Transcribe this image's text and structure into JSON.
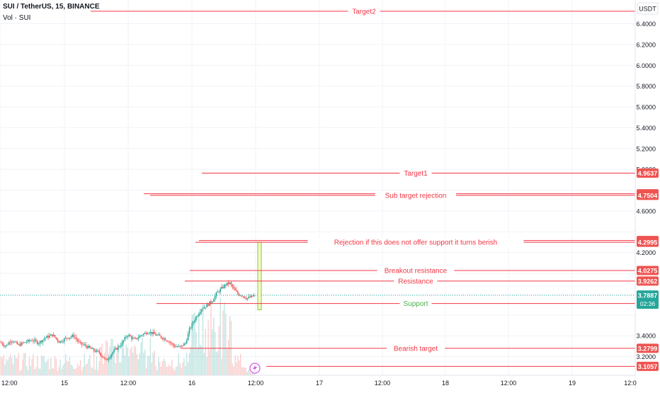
{
  "header": {
    "symbol_line": "SUI / TetherUS, 15, BINANCE",
    "volume_line": "Vol · SUI"
  },
  "price_scale": {
    "currency": "USDT",
    "ticks": [
      "6.4000",
      "6.2000",
      "6.0000",
      "5.8000",
      "5.6000",
      "5.4000",
      "5.2000",
      "5.0000",
      "4.6000",
      "4.2000",
      "3.4000",
      "3.2000"
    ]
  },
  "time_axis": {
    "labels": [
      "12:00",
      "15",
      "12:00",
      "16",
      "12:00",
      "17",
      "12:00",
      "18",
      "12:00",
      "19",
      "12:0"
    ]
  },
  "colors": {
    "up": "#26a69a",
    "down": "#ef5350",
    "line": "#f23645",
    "support_text": "#4caf50",
    "current_price": "#26a69a",
    "box_fill": "#f4fcc2",
    "box_stroke": "#8bc34a"
  },
  "chart_data": {
    "type": "candlestick",
    "symbol": "SUI / TetherUS",
    "interval": "15",
    "exchange": "BINANCE",
    "ylim": [
      3.05,
      6.58
    ],
    "current_price": {
      "value": "3.7887",
      "countdown": "02:36"
    },
    "levels": [
      {
        "label": "Target2",
        "price": 6.52,
        "price_label": "",
        "text_color": "#f23645",
        "start_x": 128
      },
      {
        "label": "Target1",
        "price": 4.9637,
        "price_label": "4.9637",
        "text_color": "#f23645",
        "start_x": 285
      },
      {
        "label": "",
        "price": 4.7657,
        "price_label": "4.7657",
        "text_color": "#f23645",
        "start_x": 203
      },
      {
        "label": "Sub target rejection",
        "price": 4.7504,
        "price_label": "4.7504",
        "text_color": "#f23645",
        "start_x": 212
      },
      {
        "label": "",
        "price": 4.3159,
        "price_label": "4.3159",
        "text_color": "#f23645",
        "start_x": 281
      },
      {
        "label": "Rejection if this does not offer support it turns berish",
        "price": 4.2995,
        "price_label": "4.2995",
        "text_color": "#f23645",
        "start_x": 276
      },
      {
        "label": "Breakout resistance",
        "price": 4.0275,
        "price_label": "4.0275",
        "text_color": "#f23645",
        "start_x": 268
      },
      {
        "label": "Resistance",
        "price": 3.9262,
        "price_label": "3.9262",
        "text_color": "#f23645",
        "start_x": 261
      },
      {
        "label": "Support",
        "price": 3.7104,
        "price_label": "3.7104",
        "text_color": "#4caf50",
        "start_x": 221
      },
      {
        "label": "Bearish target",
        "price": 3.2799,
        "price_label": "3.2799",
        "text_color": "#f23645",
        "start_x": 255
      },
      {
        "label": "",
        "price": 3.1057,
        "price_label": "3.1057",
        "text_color": "#f23645",
        "start_x": 376
      }
    ],
    "anchors": [
      [
        0,
        3.34
      ],
      [
        8,
        3.3
      ],
      [
        16,
        3.36
      ],
      [
        26,
        3.31
      ],
      [
        36,
        3.34
      ],
      [
        46,
        3.36
      ],
      [
        54,
        3.33
      ],
      [
        64,
        3.38
      ],
      [
        74,
        3.41
      ],
      [
        84,
        3.34
      ],
      [
        94,
        3.38
      ],
      [
        104,
        3.4
      ],
      [
        112,
        3.33
      ],
      [
        122,
        3.3
      ],
      [
        132,
        3.26
      ],
      [
        140,
        3.24
      ],
      [
        150,
        3.16
      ],
      [
        160,
        3.25
      ],
      [
        170,
        3.31
      ],
      [
        180,
        3.41
      ],
      [
        190,
        3.36
      ],
      [
        200,
        3.41
      ],
      [
        210,
        3.44
      ],
      [
        220,
        3.41
      ],
      [
        230,
        3.38
      ],
      [
        238,
        3.35
      ],
      [
        246,
        3.3
      ],
      [
        254,
        3.29
      ],
      [
        262,
        3.33
      ],
      [
        268,
        3.47
      ],
      [
        276,
        3.57
      ],
      [
        284,
        3.66
      ],
      [
        292,
        3.69
      ],
      [
        300,
        3.74
      ],
      [
        306,
        3.81
      ],
      [
        312,
        3.85
      ],
      [
        318,
        3.89
      ],
      [
        324,
        3.91
      ],
      [
        330,
        3.85
      ],
      [
        336,
        3.8
      ],
      [
        342,
        3.79
      ],
      [
        348,
        3.76
      ],
      [
        354,
        3.77
      ],
      [
        360,
        3.79
      ]
    ]
  }
}
